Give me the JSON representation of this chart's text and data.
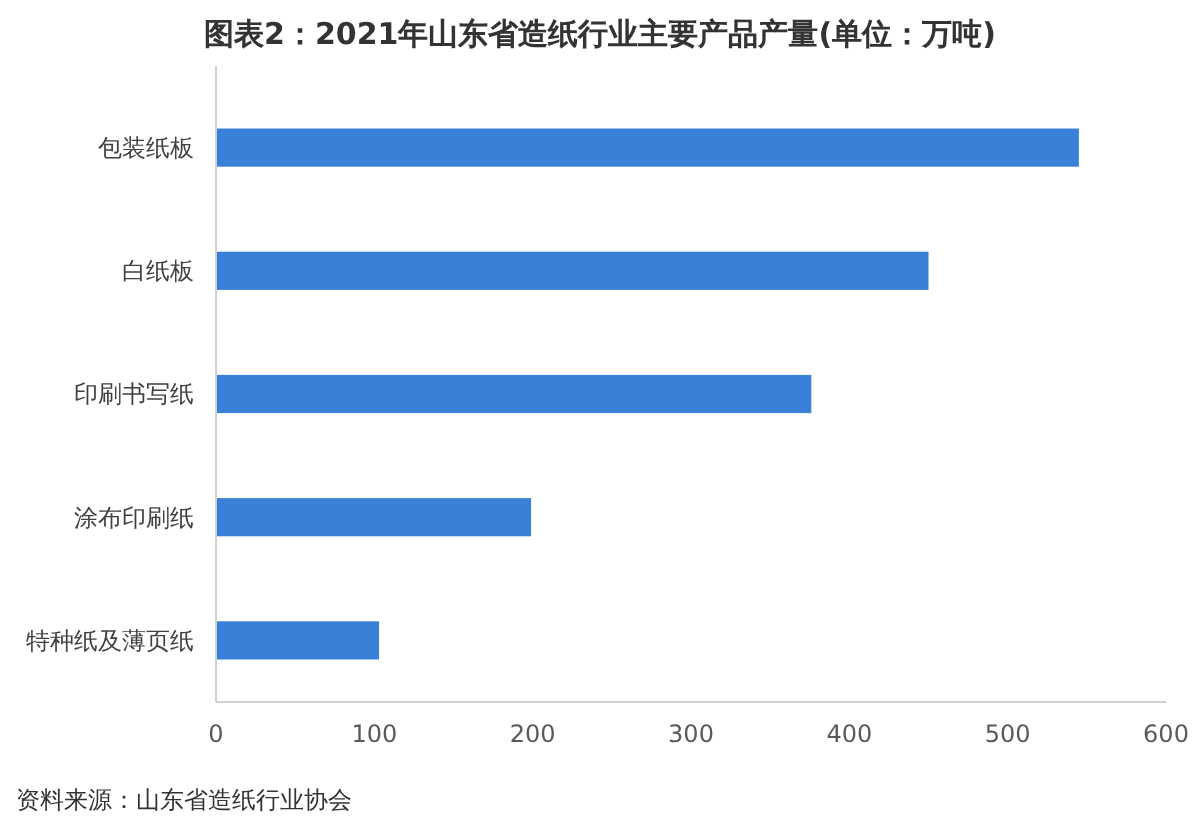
{
  "chart_data": {
    "type": "bar",
    "orientation": "horizontal",
    "title": "图表2：2021年山东省造纸行业主要产品产量(单位：万吨)",
    "categories": [
      "包装纸板",
      "白纸板",
      "印刷书写纸",
      "涂布印刷纸",
      "特种纸及薄页纸"
    ],
    "values": [
      545,
      450,
      376,
      199,
      103
    ],
    "color": "#3b80d8",
    "xlim": [
      0,
      600
    ],
    "xticks": [
      0,
      100,
      200,
      300,
      400,
      500,
      600
    ],
    "annotations": [
      "资料来源：山东省造纸行业协会"
    ]
  }
}
